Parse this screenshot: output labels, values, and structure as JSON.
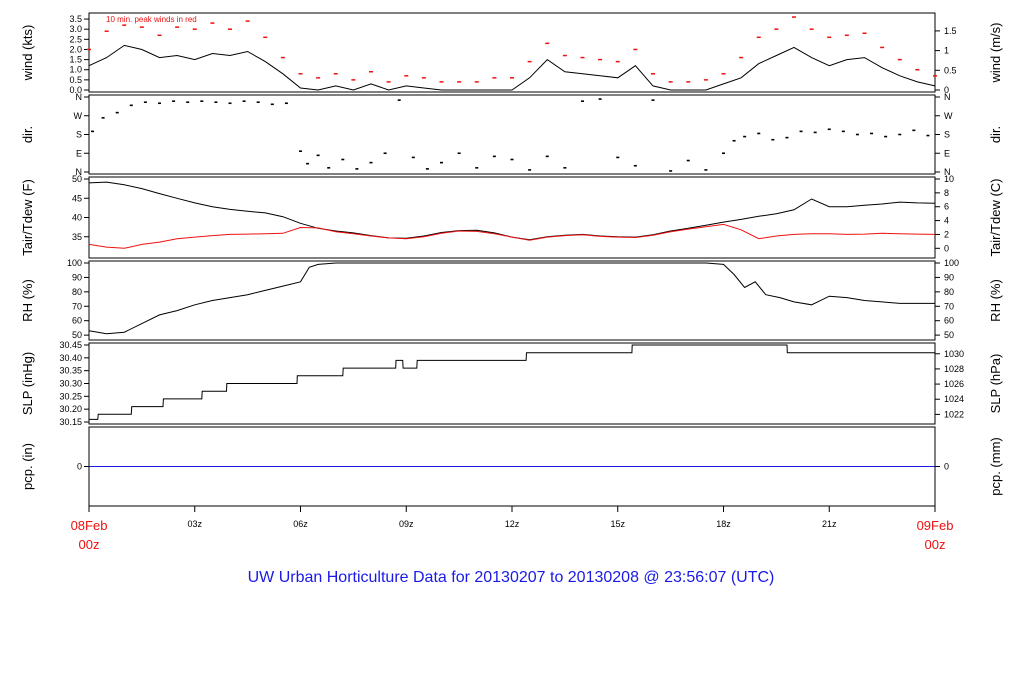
{
  "footer_title": "UW Urban Horticulture Data for 20130207  to  20130208 @ 23:56:07  (UTC)",
  "time_axis": {
    "start_label": [
      "08Feb",
      "00z"
    ],
    "end_label": [
      "09Feb",
      "00z"
    ],
    "tick_labels": [
      "03z",
      "06z",
      "09z",
      "12z",
      "15z",
      "18z",
      "21z"
    ],
    "hours": [
      3,
      6,
      9,
      12,
      15,
      18,
      21
    ]
  },
  "colors": {
    "black": "#000000",
    "red": "#ee1111",
    "blue": "#1a1ae6",
    "frame": "#000000"
  },
  "chart_data": [
    {
      "type": "line",
      "ylabel": "wind (kts)",
      "ylabel_right": "wind (m/s)",
      "annotation": "10 min. peak winds in red",
      "ylim": [
        0,
        3.7
      ],
      "yticks_left": [
        0.0,
        0.5,
        1.0,
        1.5,
        2.0,
        2.5,
        3.0,
        3.5
      ],
      "yticks_left_labels": [
        "0.0",
        "0.5",
        "1.0",
        "1.5",
        "2.0",
        "2.5",
        "3.0",
        "3.5"
      ],
      "yticks_right": [
        0,
        0.5,
        1,
        1.5
      ],
      "yticks_right_labels": [
        "0",
        "0.5",
        "1",
        "1.5"
      ],
      "right_factor": 0.514444,
      "x": [
        0,
        0.5,
        1,
        1.5,
        2,
        2.5,
        3,
        3.5,
        4,
        4.5,
        5,
        5.5,
        6,
        6.5,
        7,
        7.5,
        8,
        8.5,
        9,
        9.5,
        10,
        10.5,
        11,
        11.5,
        12,
        12.5,
        13,
        13.5,
        14,
        14.5,
        15,
        15.5,
        16,
        16.5,
        17,
        17.5,
        18,
        18.5,
        19,
        19.5,
        20,
        20.5,
        21,
        21.5,
        22,
        22.5,
        23,
        23.5,
        24
      ],
      "series": [
        {
          "color": "#000000",
          "values": [
            1.2,
            1.6,
            2.2,
            2.0,
            1.6,
            1.7,
            1.5,
            1.8,
            1.7,
            1.9,
            1.4,
            0.8,
            0.1,
            0.0,
            0.2,
            0.0,
            0.3,
            0.0,
            0.2,
            0.1,
            0.0,
            0.0,
            0.0,
            0.0,
            0.0,
            0.6,
            1.5,
            0.9,
            0.8,
            0.7,
            0.6,
            1.2,
            0.2,
            0.0,
            0.0,
            0.0,
            0.3,
            0.6,
            1.3,
            1.7,
            2.1,
            1.6,
            1.2,
            1.5,
            1.6,
            1.1,
            0.7,
            0.4,
            0.2
          ]
        },
        {
          "color": "#ee1111",
          "style": "dash",
          "values": [
            2.0,
            2.9,
            3.2,
            3.1,
            2.7,
            3.1,
            3.0,
            3.3,
            3.0,
            3.4,
            2.6,
            1.6,
            0.8,
            0.6,
            0.8,
            0.5,
            0.9,
            0.4,
            0.7,
            0.6,
            0.4,
            0.4,
            0.4,
            0.6,
            0.6,
            1.4,
            2.3,
            1.7,
            1.6,
            1.5,
            1.4,
            2.0,
            0.8,
            0.4,
            0.4,
            0.5,
            0.8,
            1.6,
            2.6,
            3.0,
            3.6,
            3.0,
            2.6,
            2.7,
            2.8,
            2.1,
            1.5,
            1.0,
            0.7
          ]
        }
      ]
    },
    {
      "type": "scatter",
      "ylabel": "dir.",
      "ylabel_right": "dir.",
      "ylim": [
        0,
        360
      ],
      "yticks_left": [
        0,
        90,
        180,
        270,
        360
      ],
      "yticks_left_labels": [
        "N",
        "E",
        "S",
        "W",
        "N"
      ],
      "yticks_right": [
        0,
        90,
        180,
        270,
        360
      ],
      "yticks_right_labels": [
        "N",
        "E",
        "S",
        "W",
        "N"
      ],
      "x": [
        0.1,
        0.4,
        0.8,
        1.2,
        1.6,
        2.0,
        2.4,
        2.8,
        3.2,
        3.6,
        4.0,
        4.4,
        4.8,
        5.2,
        5.6,
        6.0,
        6.2,
        6.5,
        6.8,
        7.2,
        7.6,
        8.0,
        8.4,
        8.8,
        9.2,
        9.6,
        10.0,
        10.5,
        11.0,
        11.5,
        12.0,
        12.5,
        13.0,
        13.5,
        14.0,
        14.5,
        15.0,
        15.5,
        16.0,
        16.5,
        17.0,
        17.5,
        18.0,
        18.3,
        18.6,
        19.0,
        19.4,
        19.8,
        20.2,
        20.6,
        21.0,
        21.4,
        21.8,
        22.2,
        22.6,
        23.0,
        23.4,
        23.8
      ],
      "values": [
        195,
        260,
        285,
        320,
        335,
        330,
        340,
        335,
        340,
        335,
        330,
        340,
        335,
        325,
        330,
        100,
        40,
        80,
        20,
        60,
        15,
        45,
        90,
        345,
        70,
        15,
        45,
        90,
        20,
        75,
        60,
        10,
        75,
        20,
        340,
        350,
        70,
        30,
        345,
        5,
        55,
        10,
        90,
        150,
        170,
        185,
        155,
        165,
        195,
        190,
        205,
        195,
        180,
        185,
        170,
        180,
        200,
        175
      ]
    },
    {
      "type": "line",
      "ylabel": "Tair/Tdew (F)",
      "ylabel_right": "Tair/Tdew (C)",
      "ylim": [
        30,
        50
      ],
      "yticks_left": [
        35,
        40,
        45,
        50
      ],
      "yticks_left_labels": [
        "35",
        "40",
        "45",
        "50"
      ],
      "yticks_right": [
        0,
        2,
        4,
        6,
        8,
        10
      ],
      "yticks_right_labels": [
        "0",
        "2",
        "4",
        "6",
        "8",
        "10"
      ],
      "x": [
        0,
        0.5,
        1,
        1.5,
        2,
        2.5,
        3,
        3.5,
        4,
        4.5,
        5,
        5.5,
        6,
        6.5,
        7,
        7.5,
        8,
        8.5,
        9,
        9.5,
        10,
        10.5,
        11,
        11.5,
        12,
        12.5,
        13,
        13.5,
        14,
        14.5,
        15,
        15.5,
        16,
        16.5,
        17,
        17.5,
        18,
        18.5,
        19,
        19.5,
        20,
        20.5,
        21,
        21.5,
        22,
        22.5,
        23,
        23.5,
        24
      ],
      "series": [
        {
          "color": "#000000",
          "values": [
            49.0,
            49.2,
            48.5,
            47.5,
            46.2,
            45.0,
            43.8,
            42.8,
            42.1,
            41.6,
            41.2,
            40.2,
            38.5,
            37.2,
            36.5,
            36.0,
            35.3,
            34.7,
            34.6,
            35.2,
            36.1,
            36.6,
            36.7,
            36.0,
            34.9,
            34.2,
            35.0,
            35.4,
            35.6,
            35.2,
            35.0,
            34.9,
            35.5,
            36.5,
            37.2,
            38.0,
            38.8,
            39.5,
            40.3,
            41.0,
            42.0,
            44.8,
            42.8,
            42.8,
            43.2,
            43.5,
            44.0,
            43.8,
            43.7
          ]
        },
        {
          "color": "#ee1111",
          "values": [
            33.0,
            32.3,
            32.0,
            33.0,
            33.6,
            34.5,
            34.9,
            35.3,
            35.6,
            35.7,
            35.8,
            35.9,
            37.4,
            37.3,
            36.3,
            35.8,
            35.2,
            34.7,
            34.5,
            35.0,
            35.9,
            36.5,
            36.4,
            35.8,
            34.9,
            34.1,
            34.9,
            35.3,
            35.5,
            35.1,
            34.9,
            34.8,
            35.4,
            36.3,
            37.0,
            37.6,
            38.2,
            36.8,
            34.5,
            35.2,
            35.6,
            35.8,
            35.8,
            35.6,
            35.7,
            35.9,
            35.8,
            35.7,
            35.6
          ]
        }
      ]
    },
    {
      "type": "line",
      "ylabel": "RH (%)",
      "ylabel_right": "RH (%)",
      "ylim": [
        48,
        100
      ],
      "yticks_left": [
        50,
        60,
        70,
        80,
        90,
        100
      ],
      "yticks_left_labels": [
        "50",
        "60",
        "70",
        "80",
        "90",
        "100"
      ],
      "yticks_right": [
        50,
        60,
        70,
        80,
        90,
        100
      ],
      "yticks_right_labels": [
        "50",
        "60",
        "70",
        "80",
        "90",
        "100"
      ],
      "x": [
        0,
        0.5,
        1,
        1.5,
        2,
        2.5,
        3,
        3.5,
        4,
        4.5,
        5,
        5.5,
        6,
        6.25,
        6.5,
        7,
        8,
        9,
        10,
        11,
        12,
        13,
        14,
        15,
        16,
        17,
        17.5,
        18,
        18.3,
        18.6,
        18.9,
        19.2,
        19.6,
        20,
        20.5,
        21,
        21.5,
        22,
        22.5,
        23,
        23.5,
        24
      ],
      "series": [
        {
          "color": "#000000",
          "values": [
            53,
            51,
            52,
            58,
            64,
            67,
            71,
            74,
            76,
            78,
            81,
            84,
            87,
            97,
            99,
            100,
            100,
            100,
            100,
            100,
            100,
            100,
            100,
            100,
            100,
            100,
            100,
            99,
            92,
            83,
            87,
            78,
            76,
            73,
            71,
            77,
            76,
            74,
            73,
            72,
            72,
            72
          ]
        }
      ]
    },
    {
      "type": "line",
      "ylabel": "SLP (inHg)",
      "ylabel_right": "SLP (hPa)",
      "ylim": [
        30.15,
        30.45
      ],
      "yticks_left": [
        30.15,
        30.2,
        30.25,
        30.3,
        30.35,
        30.4,
        30.45
      ],
      "yticks_left_labels": [
        "30.15",
        "30.20",
        "30.25",
        "30.30",
        "30.35",
        "30.40",
        "30.45"
      ],
      "yticks_right": [
        1022,
        1024,
        1026,
        1028,
        1030
      ],
      "yticks_right_labels": [
        "1022",
        "1024",
        "1026",
        "1028",
        "1030"
      ],
      "x": [
        0,
        0.25,
        0.26,
        1.2,
        1.21,
        2.1,
        2.11,
        3.2,
        3.21,
        3.9,
        3.91,
        5.9,
        5.91,
        7.2,
        7.21,
        8.7,
        8.71,
        8.9,
        8.91,
        9.3,
        9.31,
        9.4,
        9.41,
        12.4,
        12.41,
        15.4,
        15.41,
        19.8,
        19.81,
        24
      ],
      "series": [
        {
          "color": "#000000",
          "values": [
            30.16,
            30.16,
            30.18,
            30.18,
            30.21,
            30.21,
            30.24,
            30.24,
            30.27,
            30.27,
            30.3,
            30.3,
            30.33,
            30.33,
            30.36,
            30.36,
            30.39,
            30.39,
            30.36,
            30.36,
            30.39,
            30.39,
            30.39,
            30.39,
            30.42,
            30.42,
            30.45,
            30.45,
            30.42,
            30.42
          ]
        }
      ]
    },
    {
      "type": "line",
      "ylabel": "pcp. (in)",
      "ylabel_right": "pcp. (mm)",
      "ylim": [
        -1,
        1
      ],
      "yticks_left": [
        0
      ],
      "yticks_left_labels": [
        "0"
      ],
      "yticks_right": [
        0
      ],
      "yticks_right_labels": [
        "0"
      ],
      "x": [
        0,
        24
      ],
      "series": [
        {
          "color": "#1a1ae6",
          "values": [
            0,
            0
          ]
        }
      ]
    }
  ]
}
